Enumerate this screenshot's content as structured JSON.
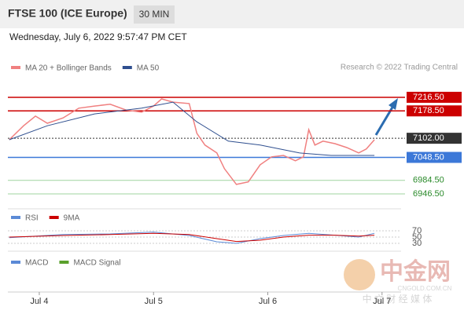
{
  "chart_data": {
    "type": "line",
    "title": "FTSE 100 (ICE Europe)",
    "interval": "30 MIN",
    "subtitle": "Wednesday, July 6, 2022 9:57:47 PM CET",
    "attribution": "Research © 2022 Trading Central",
    "watermark": {
      "logo": "中金网",
      "site": "CNGOLD.COM.CN",
      "tagline": "中 文 财 经 媒 体"
    },
    "xlim": [
      -6.6,
      76
    ],
    "xticks": [
      {
        "value": 0,
        "label": "Jul 4"
      },
      {
        "value": 24,
        "label": "Jul 5"
      },
      {
        "value": 48,
        "label": "Jul 6"
      },
      {
        "value": 72,
        "label": "Jul 7"
      }
    ],
    "ylim": [
      6918,
      7280
    ],
    "series": [
      {
        "name": "MA 20 + Bollinger Bands",
        "color": "#f08080",
        "x": [
          -6.3,
          -3.3,
          -0.8,
          1.7,
          5,
          8.3,
          11.6,
          14.9,
          18.2,
          21.5,
          24,
          25.7,
          28.1,
          31.5,
          33.1,
          34.8,
          37.3,
          38.9,
          41.4,
          43.9,
          46.4,
          48.8,
          51.3,
          53.8,
          55.5,
          56.6,
          57.9,
          59.6,
          62.1,
          64.6,
          67.1,
          68.7,
          70.4
        ],
        "values": [
          7098,
          7137,
          7164,
          7144,
          7159,
          7186,
          7192,
          7197,
          7181,
          7175,
          7192,
          7212,
          7203,
          7199,
          7116,
          7083,
          7061,
          7017,
          6973,
          6980,
          7028,
          7050,
          7054,
          7039,
          7050,
          7126,
          7083,
          7094,
          7087,
          7076,
          7061,
          7072,
          7098
        ]
      },
      {
        "name": "MA 50",
        "color": "#2f4f8f",
        "x": [
          -6.3,
          1.7,
          11.6,
          21.5,
          28.1,
          33.1,
          39.7,
          46.4,
          54.6,
          61.3,
          70.4
        ],
        "values": [
          7098,
          7137,
          7170,
          7186,
          7203,
          7148,
          7094,
          7083,
          7061,
          7054,
          7054
        ]
      }
    ],
    "levels": [
      {
        "value": 7216.5,
        "label": "7216.50",
        "color": "#cc0000",
        "box": true
      },
      {
        "value": 7178.5,
        "label": "7178.50",
        "color": "#cc0000",
        "box": true
      },
      {
        "value": 7102,
        "label": "7102.00",
        "color": "#333333",
        "box": true
      },
      {
        "value": 7048.5,
        "label": "7048.50",
        "color": "#3c78d8",
        "box": true
      },
      {
        "value": 6984.5,
        "label": "6984.50",
        "color": "#2a8a2a",
        "box": false
      },
      {
        "value": 6946.5,
        "label": "6946.50",
        "color": "#2a8a2a",
        "box": false
      }
    ],
    "rsi": {
      "ylim": [
        10,
        85
      ],
      "yticks": [
        70,
        50,
        30
      ],
      "series": [
        {
          "name": "RSI",
          "color": "#5b8ad6",
          "x": [
            -6.3,
            5,
            14.9,
            24,
            31.5,
            37.3,
            41.4,
            46.4,
            51.3,
            56.6,
            62.1,
            67.1,
            70.4
          ],
          "values": [
            48,
            58,
            60,
            66,
            55,
            35,
            30,
            45,
            55,
            62,
            56,
            50,
            62
          ]
        },
        {
          "name": "9MA",
          "color": "#cc0000",
          "x": [
            -6.3,
            5,
            14.9,
            24,
            31.5,
            37.3,
            41.4,
            46.4,
            51.3,
            56.6,
            62.1,
            67.1,
            70.4
          ],
          "values": [
            50,
            55,
            58,
            62,
            58,
            45,
            36,
            40,
            50,
            56,
            56,
            53,
            56
          ]
        }
      ]
    },
    "macd": {
      "series": [
        {
          "name": "MACD",
          "color": "#5b8ad6"
        },
        {
          "name": "MACD Signal",
          "color": "#5aa02c"
        }
      ]
    }
  }
}
